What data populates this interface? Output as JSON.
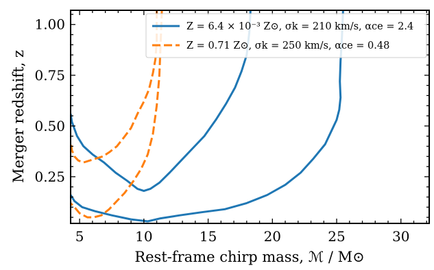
{
  "chart_data": {
    "type": "line",
    "xlabel": "Rest-frame chirp mass, ℳ / M⊙",
    "ylabel": "Merger redshift, z",
    "xlim": [
      4.3,
      32.2
    ],
    "ylim": [
      0.02,
      1.07
    ],
    "x_ticks": [
      5,
      10,
      15,
      20,
      25,
      30
    ],
    "x_tick_labels": [
      "5",
      "10",
      "15",
      "20",
      "25",
      "30"
    ],
    "y_ticks": [
      0.25,
      0.5,
      0.75,
      1.0
    ],
    "y_tick_labels": [
      "0.25",
      "0.50",
      "0.75",
      "1.00"
    ],
    "x_minor_step": 1,
    "y_minor_step": 0.05,
    "grid": false,
    "legend_placement": "top-right",
    "series": [
      {
        "name": "Z = 6.4 × 10⁻³ Z⊙, σk = 210 km/s, αce = 2.4",
        "color": "#1f77b4",
        "style": "solid",
        "curves": [
          {
            "x": [
              18.3,
              18.2,
              18.0,
              17.6,
              17.1,
              16.4,
              15.6,
              14.7,
              13.8,
              12.9,
              12.0,
              11.2,
              10.5,
              10.0,
              9.5,
              8.7,
              7.8,
              6.9,
              6.0,
              5.3,
              4.8,
              4.4,
              4.3
            ],
            "y": [
              1.07,
              0.96,
              0.85,
              0.77,
              0.69,
              0.61,
              0.53,
              0.45,
              0.39,
              0.33,
              0.27,
              0.22,
              0.19,
              0.18,
              0.19,
              0.23,
              0.27,
              0.32,
              0.36,
              0.4,
              0.45,
              0.52,
              0.56
            ]
          },
          {
            "x": [
              25.5,
              25.45,
              25.4,
              25.3,
              25.25,
              25.3,
              25.2,
              25.0,
              24.7,
              24.1,
              23.2,
              22.2,
              21.0,
              19.6,
              18.0,
              16.3,
              14.5,
              12.8,
              11.3,
              10.3,
              9.0,
              7.5,
              6.2,
              5.2,
              4.6,
              4.3
            ],
            "y": [
              1.07,
              1.0,
              0.92,
              0.82,
              0.72,
              0.64,
              0.58,
              0.53,
              0.49,
              0.41,
              0.34,
              0.27,
              0.21,
              0.16,
              0.12,
              0.09,
              0.075,
              0.06,
              0.045,
              0.03,
              0.04,
              0.06,
              0.08,
              0.1,
              0.13,
              0.16
            ]
          }
        ]
      },
      {
        "name": "Z = 0.71 Z⊙, σk = 250 km/s, αce = 0.48",
        "color": "#ff7f0e",
        "style": "dashed",
        "curves": [
          {
            "x": [
              11.0,
              11.0,
              10.9,
              10.7,
              10.4,
              10.0,
              9.5,
              9.0,
              8.4,
              7.9,
              7.3,
              6.8,
              6.3,
              5.8,
              5.3,
              4.9,
              4.6,
              4.4,
              4.3
            ],
            "y": [
              1.07,
              0.92,
              0.83,
              0.76,
              0.68,
              0.62,
              0.56,
              0.49,
              0.44,
              0.4,
              0.37,
              0.35,
              0.34,
              0.33,
              0.32,
              0.33,
              0.35,
              0.38,
              0.42
            ]
          },
          {
            "x": [
              11.4,
              11.3,
              11.2,
              11.0,
              10.7,
              10.3,
              9.8,
              9.2,
              8.5,
              7.9,
              7.3,
              6.7,
              6.1,
              5.6,
              5.0,
              4.6,
              4.3
            ],
            "y": [
              1.07,
              0.9,
              0.74,
              0.6,
              0.46,
              0.36,
              0.29,
              0.23,
              0.17,
              0.13,
              0.09,
              0.06,
              0.05,
              0.05,
              0.07,
              0.1,
              0.12
            ]
          }
        ]
      }
    ]
  }
}
